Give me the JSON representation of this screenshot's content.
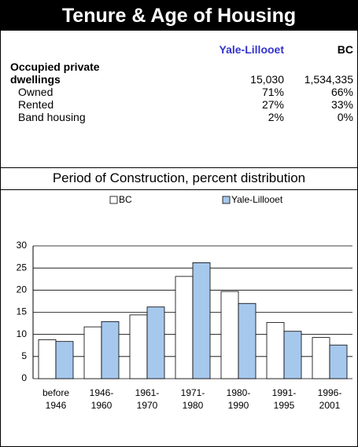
{
  "header": {
    "title": "Tenure & Age of Housing"
  },
  "table": {
    "columns": [
      "Yale-Lillooet",
      "BC"
    ],
    "rows": [
      [
        "Occupied private dwellings",
        "15,030",
        "1,534,335"
      ],
      [
        "Owned",
        "71%",
        "66%"
      ],
      [
        "Rented",
        "27%",
        "33%"
      ],
      [
        "Band housing",
        "2%",
        "0%"
      ]
    ]
  },
  "chart_data": {
    "type": "bar",
    "title": "Period of Construction, percent distribution",
    "categories": [
      "before 1946",
      "1946-1960",
      "1961-1970",
      "1971-1980",
      "1980-1990",
      "1991-1995",
      "1996-2001"
    ],
    "series": [
      {
        "name": "BC",
        "color": "#ffffff",
        "values": [
          8.8,
          11.7,
          14.4,
          23.1,
          19.7,
          12.7,
          9.3
        ]
      },
      {
        "name": "Yale-Lillooet",
        "color": "#a6c8ec",
        "values": [
          8.4,
          12.9,
          16.2,
          26.2,
          17.0,
          10.7,
          7.6
        ]
      }
    ],
    "ylim": [
      0,
      30
    ],
    "yticks": [
      0,
      5,
      10,
      15,
      20,
      25,
      30
    ],
    "grid": true,
    "legend": "top"
  }
}
